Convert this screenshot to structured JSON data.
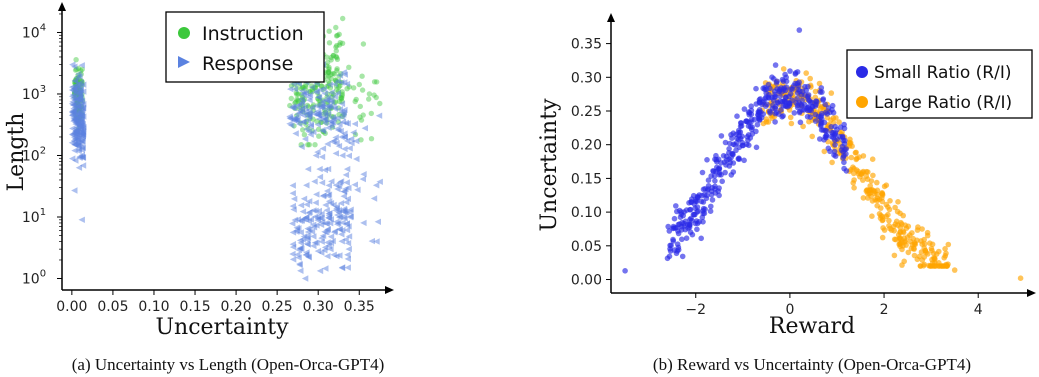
{
  "chart_data": [
    {
      "type": "scatter",
      "xlabel": "Uncertainty",
      "ylabel": "Length",
      "caption": "(a) Uncertainty vs Length (Open-Orca-GPT4)",
      "yscale": "log",
      "xlim": [
        -0.012,
        0.385
      ],
      "ylim": [
        0.65,
        25000
      ],
      "xticks": [
        "0.00",
        "0.05",
        "0.10",
        "0.15",
        "0.20",
        "0.25",
        "0.30",
        "0.35"
      ],
      "yticks": [
        {
          "base": "10",
          "exp": "0"
        },
        {
          "base": "10",
          "exp": "1"
        },
        {
          "base": "10",
          "exp": "2"
        },
        {
          "base": "10",
          "exp": "3"
        },
        {
          "base": "10",
          "exp": "4"
        }
      ],
      "legend": {
        "position": "top-center"
      },
      "series": [
        {
          "name": "Instruction",
          "color": "#3cc83c",
          "marker": "circle"
        },
        {
          "name": "Response",
          "color": "#5b82e0",
          "marker": "triangle-left"
        }
      ],
      "clusters": [
        {
          "series": 0,
          "x_range": [
            0.003,
            0.013
          ],
          "y_range": [
            200,
            4000
          ],
          "count": 90
        },
        {
          "series": 1,
          "x_range": [
            0.0,
            0.014
          ],
          "y_range": [
            60,
            3000
          ],
          "count": 190
        },
        {
          "series": 0,
          "x_range": [
            0.265,
            0.33
          ],
          "y_range": [
            150,
            20000
          ],
          "count": 250
        },
        {
          "series": 0,
          "x_range": [
            0.3,
            0.375
          ],
          "y_range": [
            180,
            3500
          ],
          "count": 35
        },
        {
          "series": 1,
          "x_range": [
            0.265,
            0.335
          ],
          "y_range": [
            100,
            3000
          ],
          "count": 160
        },
        {
          "series": 1,
          "x_range": [
            0.268,
            0.34
          ],
          "y_range": [
            1,
            60
          ],
          "count": 190
        },
        {
          "series": 1,
          "x_range": [
            0.3,
            0.375
          ],
          "y_range": [
            4,
            2000
          ],
          "count": 30
        }
      ],
      "points": [
        {
          "series": 1,
          "x": 0.003,
          "y": 27
        },
        {
          "series": 1,
          "x": 0.012,
          "y": 9
        },
        {
          "series": 1,
          "x": 0.368,
          "y": 20
        },
        {
          "series": 1,
          "x": 0.371,
          "y": 4
        },
        {
          "series": 1,
          "x": 0.355,
          "y": 8
        },
        {
          "series": 0,
          "x": 0.355,
          "y": 6500
        },
        {
          "series": 0,
          "x": 0.375,
          "y": 700
        }
      ]
    },
    {
      "type": "scatter",
      "xlabel": "Reward",
      "ylabel": "Uncertainty",
      "caption": "(b) Reward vs Uncertainty (Open-Orca-GPT4)",
      "xlim": [
        -3.8,
        5.1
      ],
      "ylim": [
        -0.02,
        0.385
      ],
      "xticks": [
        -2,
        0,
        2,
        4
      ],
      "yticks": [
        "0.00",
        "0.05",
        "0.10",
        "0.15",
        "0.20",
        "0.25",
        "0.30",
        "0.35"
      ],
      "legend": {
        "position": "top-right"
      },
      "series": [
        {
          "name": "Small Ratio (R/I)",
          "color": "#2a2ae6"
        },
        {
          "name": "Large Ratio (R/I)",
          "color": "#ffa500"
        }
      ],
      "curve": {
        "peak_x": 0.0,
        "peak_y": 0.27,
        "width": 1.4,
        "noise": 0.018
      },
      "clusters": [
        {
          "series": 1,
          "x_range": [
            -0.6,
            3.4
          ],
          "count": 380
        },
        {
          "series": 0,
          "x_range": [
            -2.6,
            1.2
          ],
          "count": 440
        }
      ],
      "points": [
        {
          "series": 0,
          "x": -3.5,
          "y": 0.013
        },
        {
          "series": 0,
          "x": 0.2,
          "y": 0.37
        },
        {
          "series": 1,
          "x": 4.9,
          "y": 0.002
        },
        {
          "series": 1,
          "x": 3.5,
          "y": 0.014
        }
      ]
    }
  ]
}
